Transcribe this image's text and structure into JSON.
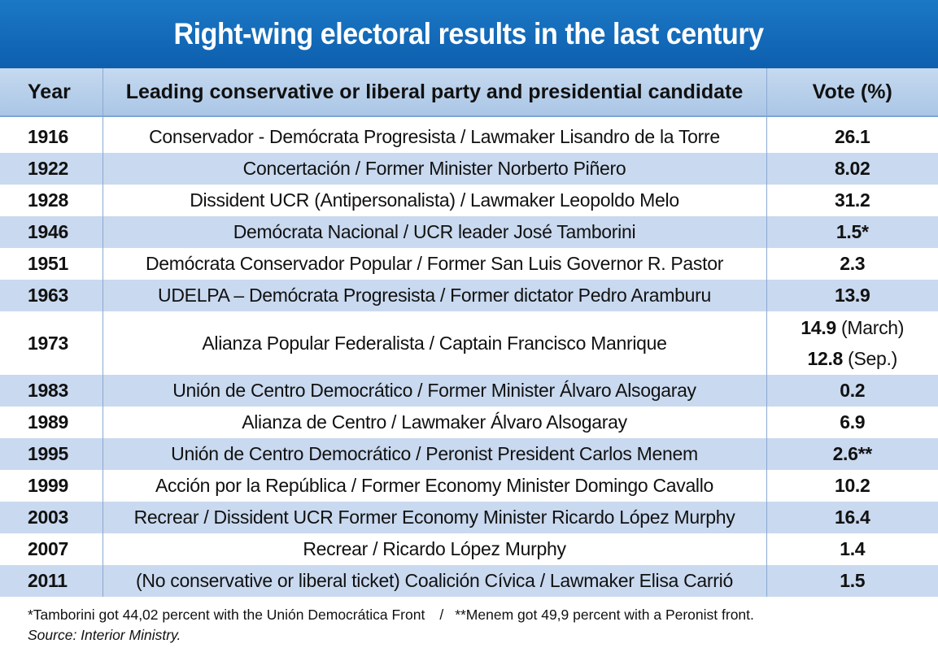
{
  "title": "Right-wing electoral results in the last century",
  "headers": {
    "year": "Year",
    "party": "Leading conservative or liberal party and presidential candidate",
    "vote": "Vote (%)"
  },
  "rows": [
    {
      "year": "1916",
      "party": "Conservador - Demócrata Progresista / Lawmaker Lisandro de la Torre",
      "vote": "26.1"
    },
    {
      "year": "1922",
      "party": "Concertación / Former Minister Norberto Piñero",
      "vote": "8.02"
    },
    {
      "year": "1928",
      "party": "Dissident UCR (Antipersonalista) / Lawmaker Leopoldo Melo",
      "vote": "31.2"
    },
    {
      "year": "1946",
      "party": "Demócrata Nacional / UCR leader José Tamborini",
      "vote": "1.5*"
    },
    {
      "year": "1951",
      "party": "Demócrata Conservador Popular / Former San Luis Governor R. Pastor",
      "vote": "2.3"
    },
    {
      "year": "1963",
      "party": "UDELPA – Demócrata Progresista / Former dictator Pedro Aramburu",
      "vote": "13.9"
    },
    {
      "year": "1973",
      "party": "Alianza Popular Federalista / Captain Francisco Manrique",
      "vote_1": "14.9",
      "vote_1_note": "(March)",
      "vote_2": "12.8",
      "vote_2_note": "(Sep.)"
    },
    {
      "year": "1983",
      "party": "Unión de Centro Democrático / Former Minister Álvaro Alsogaray",
      "vote": "0.2"
    },
    {
      "year": "1989",
      "party": "Alianza de Centro / Lawmaker Álvaro Alsogaray",
      "vote": "6.9"
    },
    {
      "year": "1995",
      "party": "Unión de Centro Democrático / Peronist President Carlos Menem",
      "vote": "2.6**"
    },
    {
      "year": "1999",
      "party": "Acción por la República / Former Economy Minister Domingo Cavallo",
      "vote": "10.2"
    },
    {
      "year": "2003",
      "party": "Recrear / Dissident UCR Former Economy Minister Ricardo López Murphy",
      "vote": "16.4"
    },
    {
      "year": "2007",
      "party": "Recrear / Ricardo López Murphy",
      "vote": "1.4"
    },
    {
      "year": "2011",
      "party": "(No conservative or liberal ticket) Coalición Cívica / Lawmaker Elisa Carrió",
      "vote": "1.5"
    }
  ],
  "footnotes": {
    "note1": "*Tamborini got 44,02 percent with the Unión Democrática Front",
    "separator": "/",
    "note2": "**Menem got 49,9 percent with a Peronist front.",
    "source": "Source: Interior Ministry."
  },
  "colors": {
    "title_bg": "#0d5fae",
    "header_bg": "#aac6e6",
    "alt_row_bg": "#c9d9ef"
  }
}
